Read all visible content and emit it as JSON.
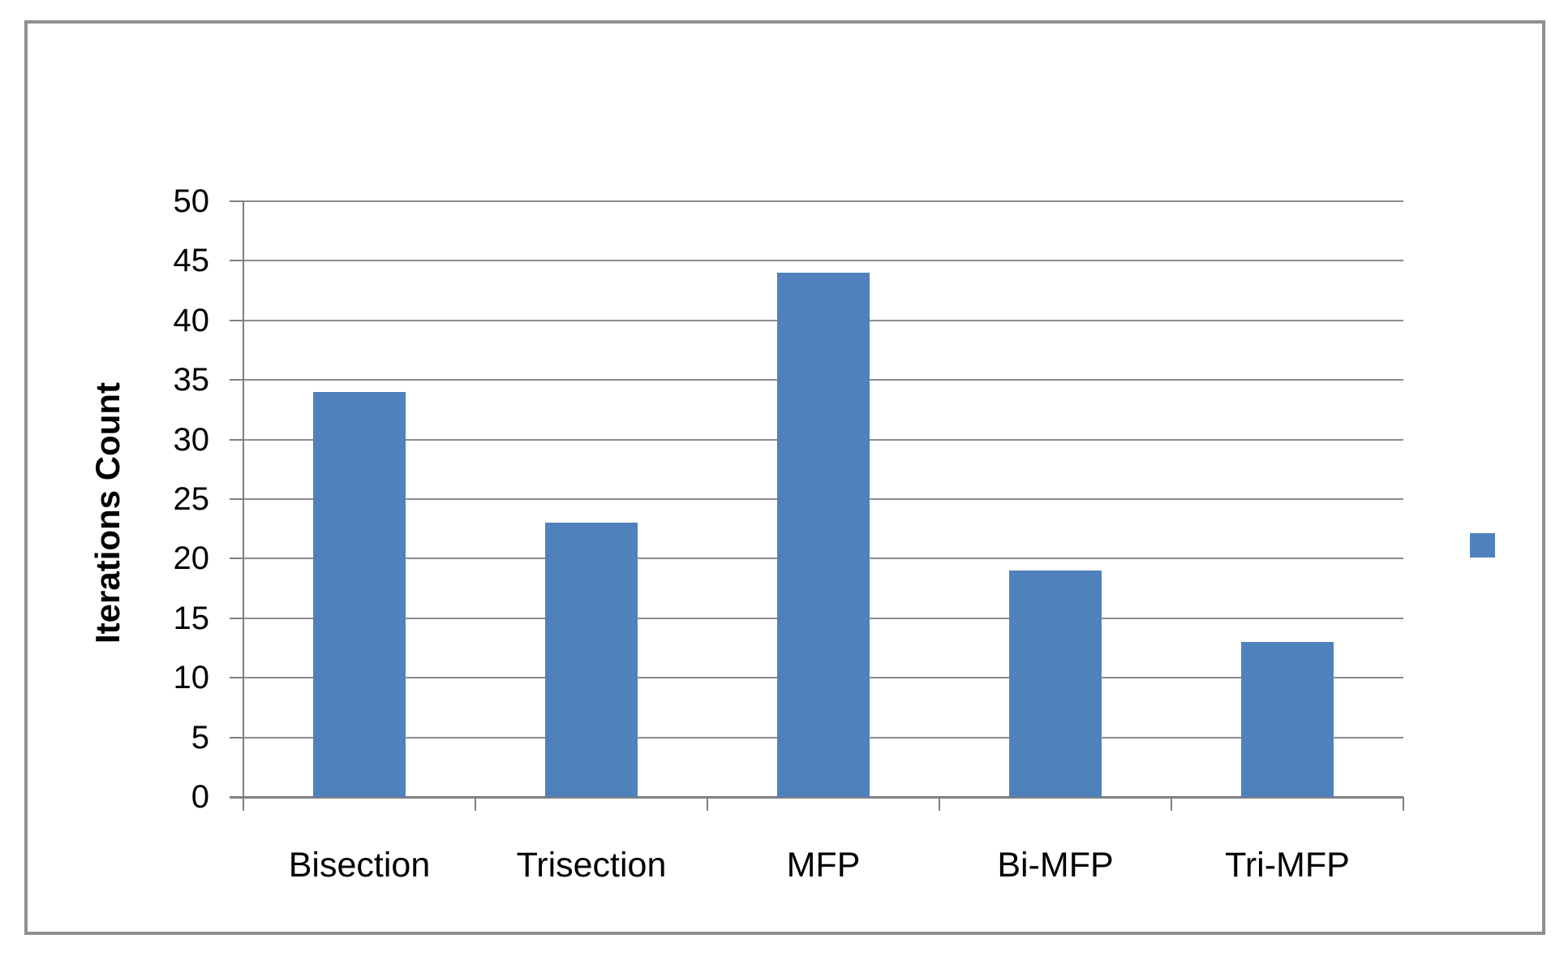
{
  "chart_data": {
    "type": "bar",
    "categories": [
      "Bisection",
      "Trisection",
      "MFP",
      "Bi-MFP",
      "Tri-MFP"
    ],
    "values": [
      34,
      23,
      44,
      19,
      13
    ],
    "title": "",
    "xlabel": "",
    "ylabel": "Iterations Count",
    "ylim": [
      0,
      50
    ],
    "ytick_step": 5,
    "ytick_labels": [
      "0",
      "5",
      "10",
      "15",
      "20",
      "25",
      "30",
      "35",
      "40",
      "45",
      "50"
    ],
    "grid": true,
    "legend": {
      "position": "right",
      "entries": [
        {
          "label": "",
          "color": "#4F81BD",
          "marker": "square"
        }
      ]
    }
  },
  "colors": {
    "bar_fill": "#4F81BD",
    "gridline": "#8C8C8C",
    "axis_line": "#808080",
    "frame_border": "#8F8F8F",
    "label_text": "#000000",
    "background": "#FFFFFF"
  }
}
